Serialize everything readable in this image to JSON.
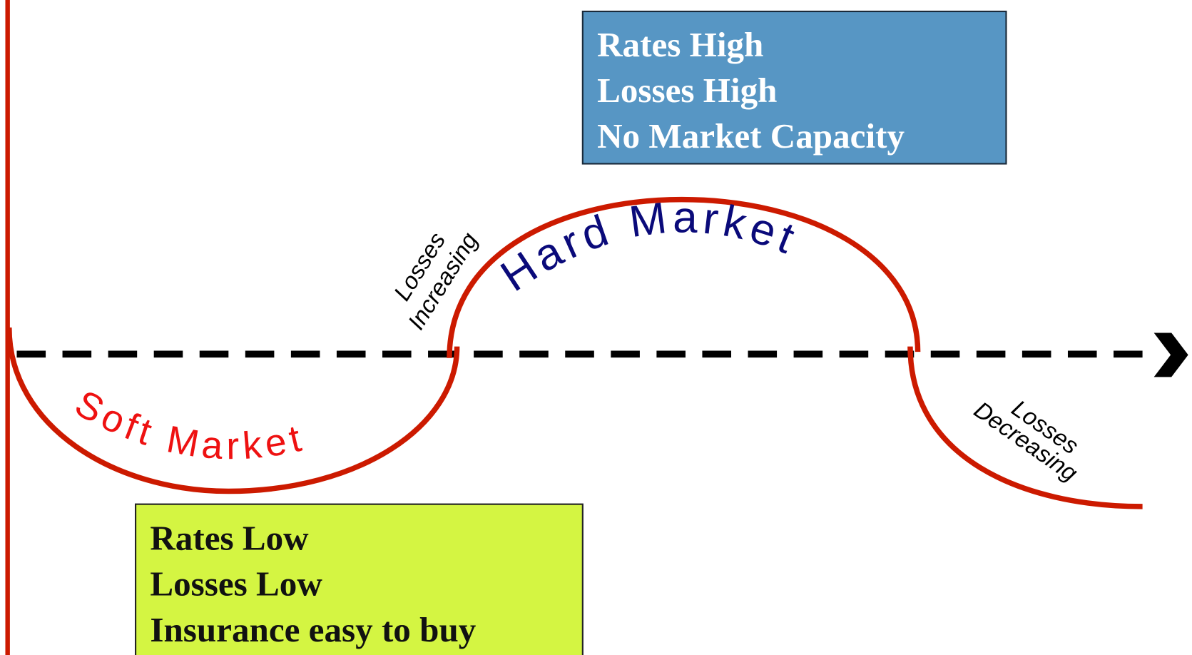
{
  "hard_box": {
    "lines": [
      "Rates High",
      "Losses High",
      "No Market Capacity"
    ]
  },
  "soft_box": {
    "lines": [
      "Rates Low",
      "Losses Low",
      "Insurance easy to buy"
    ]
  },
  "curve_labels": {
    "soft": "Soft Market",
    "hard": "Hard Market",
    "increasing": [
      "Losses",
      "Increasing"
    ],
    "decreasing": [
      "Losses",
      "Decreasing"
    ]
  }
}
